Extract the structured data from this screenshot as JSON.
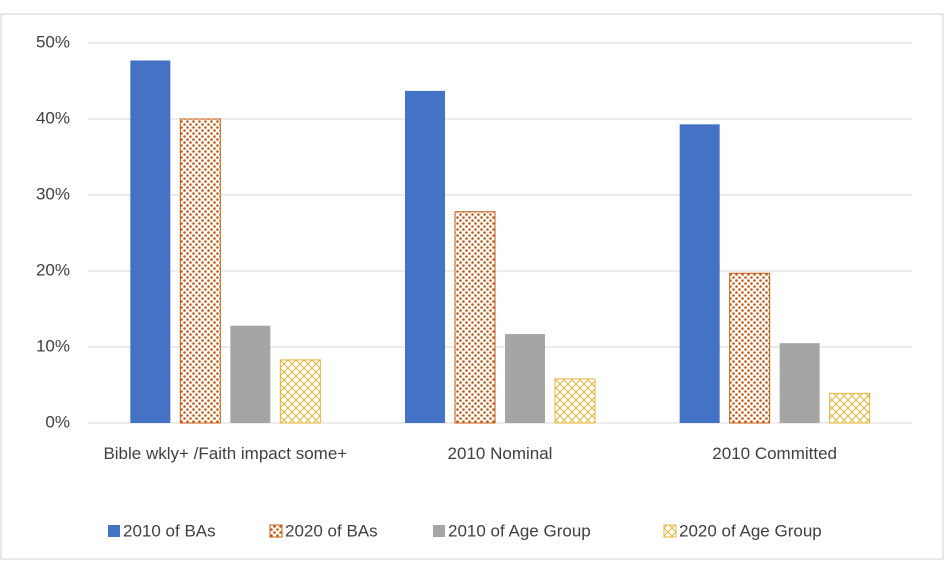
{
  "chart_data": {
    "type": "bar",
    "categories": [
      "Bible wkly+ /Faith impact some+",
      "2010 Nominal",
      "2010 Committed"
    ],
    "series": [
      {
        "name": "2010 of BAs",
        "color": "#4472c4",
        "pattern": "solid",
        "values": [
          47.7,
          43.7,
          39.3
        ]
      },
      {
        "name": "2020 of BAs",
        "color": "#c55a11",
        "pattern": "dots",
        "values": [
          40,
          27.8,
          19.7
        ]
      },
      {
        "name": "2010 of Age Group",
        "color": "#a5a5a5",
        "pattern": "solid",
        "values": [
          12.8,
          11.7,
          10.5
        ]
      },
      {
        "name": "2020 of Age Group",
        "color": "#e6b43c",
        "pattern": "crosshatch",
        "values": [
          8.3,
          5.8,
          3.9
        ]
      }
    ],
    "ylim": [
      0,
      50
    ],
    "yticks": [
      {
        "value": 0,
        "label": "0%"
      },
      {
        "value": 10,
        "label": "10%"
      },
      {
        "value": 20,
        "label": "20%"
      },
      {
        "value": 30,
        "label": "30%"
      },
      {
        "value": 40,
        "label": "40%"
      },
      {
        "value": 50,
        "label": "50%"
      }
    ],
    "grid": true,
    "legend": "bottom"
  }
}
